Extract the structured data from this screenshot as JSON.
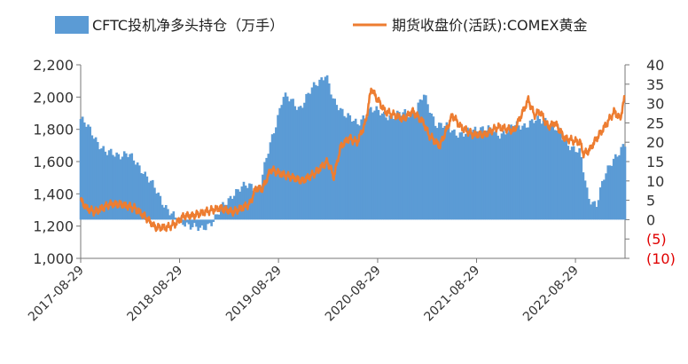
{
  "chart_data": {
    "type": "bar+line",
    "legend": {
      "bar_label": "CFTC投机净多头持仓（万手）",
      "line_label": "期货收盘价(活跃):COMEX黄金",
      "bar_color": "#5B9BD5",
      "line_color": "#ED7D31",
      "placement": "top"
    },
    "left_axis": {
      "min": 1000,
      "max": 2200,
      "ticks": [
        1000,
        1200,
        1400,
        1600,
        1800,
        2000,
        2200
      ],
      "tick_labels": [
        "1,000",
        "1,200",
        "1,400",
        "1,600",
        "1,800",
        "2,000",
        "2,200"
      ]
    },
    "right_axis": {
      "min": -10,
      "max": 40,
      "ticks": [
        -10,
        -5,
        0,
        5,
        10,
        15,
        20,
        25,
        30,
        35,
        40
      ],
      "tick_labels": [
        "(10)",
        "(5)",
        "0",
        "5",
        "10",
        "15",
        "20",
        "25",
        "30",
        "35",
        "40"
      ],
      "negative_color": "#E00000"
    },
    "x_axis": {
      "start": "2017-08-29",
      "end": "2023-02-28",
      "tick_labels": [
        "2017-08-29",
        "2018-08-29",
        "2019-08-29",
        "2020-08-29",
        "2021-08-29",
        "2022-08-29"
      ]
    },
    "bar_series": {
      "name": "CFTC投机净多头持仓（万手）",
      "baseline": 0,
      "anchors_date": [
        "2017-08-29",
        "2017-10-15",
        "2017-12-01",
        "2018-02-15",
        "2018-04-15",
        "2018-06-15",
        "2018-08-15",
        "2018-10-01",
        "2018-11-15",
        "2019-01-15",
        "2019-03-15",
        "2019-05-15",
        "2019-06-20",
        "2019-08-01",
        "2019-09-15",
        "2019-11-15",
        "2020-01-15",
        "2020-02-20",
        "2020-03-20",
        "2020-05-15",
        "2020-06-15",
        "2020-08-01",
        "2020-09-15",
        "2020-11-15",
        "2021-01-15",
        "2021-02-15",
        "2021-04-01",
        "2021-06-01",
        "2021-07-15",
        "2021-09-15",
        "2021-11-15",
        "2022-01-15",
        "2022-03-15",
        "2022-05-15",
        "2022-07-15",
        "2022-09-15",
        "2022-10-15",
        "2022-11-15",
        "2022-12-15",
        "2023-01-15",
        "2023-02-28"
      ],
      "anchors_value": [
        26,
        22,
        17,
        17,
        13,
        6,
        0,
        -1,
        -3,
        1,
        7,
        9,
        8,
        20,
        32,
        29,
        35,
        38,
        30,
        27,
        24,
        29,
        27,
        27,
        28,
        32,
        25,
        23,
        22,
        24,
        22,
        24,
        25,
        26,
        21,
        17,
        6,
        4,
        11,
        16,
        19
      ]
    },
    "line_series": {
      "name": "期货收盘价(活跃):COMEX黄金",
      "anchors_date": [
        "2017-08-29",
        "2017-09-20",
        "2017-10-20",
        "2017-12-15",
        "2018-01-25",
        "2018-03-15",
        "2018-04-20",
        "2018-06-01",
        "2018-07-15",
        "2018-08-15",
        "2018-09-15",
        "2018-10-15",
        "2018-12-01",
        "2019-01-25",
        "2019-03-15",
        "2019-05-15",
        "2019-06-05",
        "2019-07-01",
        "2019-08-01",
        "2019-09-01",
        "2019-10-15",
        "2019-11-25",
        "2020-01-10",
        "2020-02-25",
        "2020-03-10",
        "2020-03-20",
        "2020-04-15",
        "2020-05-15",
        "2020-06-15",
        "2020-07-15",
        "2020-08-06",
        "2020-08-20",
        "2020-09-25",
        "2020-11-01",
        "2020-12-01",
        "2021-01-05",
        "2021-02-15",
        "2021-03-05",
        "2021-04-15",
        "2021-06-01",
        "2021-07-01",
        "2021-08-15",
        "2021-10-01",
        "2021-11-15",
        "2022-01-15",
        "2022-03-08",
        "2022-03-30",
        "2022-04-20",
        "2022-05-20",
        "2022-06-15",
        "2022-07-20",
        "2022-09-15",
        "2022-09-28",
        "2022-10-20",
        "2022-11-15",
        "2022-12-15",
        "2023-01-20",
        "2023-02-10",
        "2023-02-28"
      ],
      "anchors_value": [
        5,
        3,
        2,
        4,
        4,
        3,
        1,
        -2,
        -2,
        -1,
        1,
        1,
        2,
        3,
        2,
        4,
        8,
        8,
        13,
        12,
        11,
        10,
        12,
        15,
        13,
        11,
        19,
        21,
        20,
        25,
        34,
        32,
        28,
        27,
        26,
        28,
        25,
        22,
        19,
        27,
        24,
        22,
        22,
        24,
        23,
        31,
        27,
        28,
        24,
        25,
        21,
        20,
        17,
        18,
        21,
        24,
        28,
        26,
        32
      ]
    }
  }
}
